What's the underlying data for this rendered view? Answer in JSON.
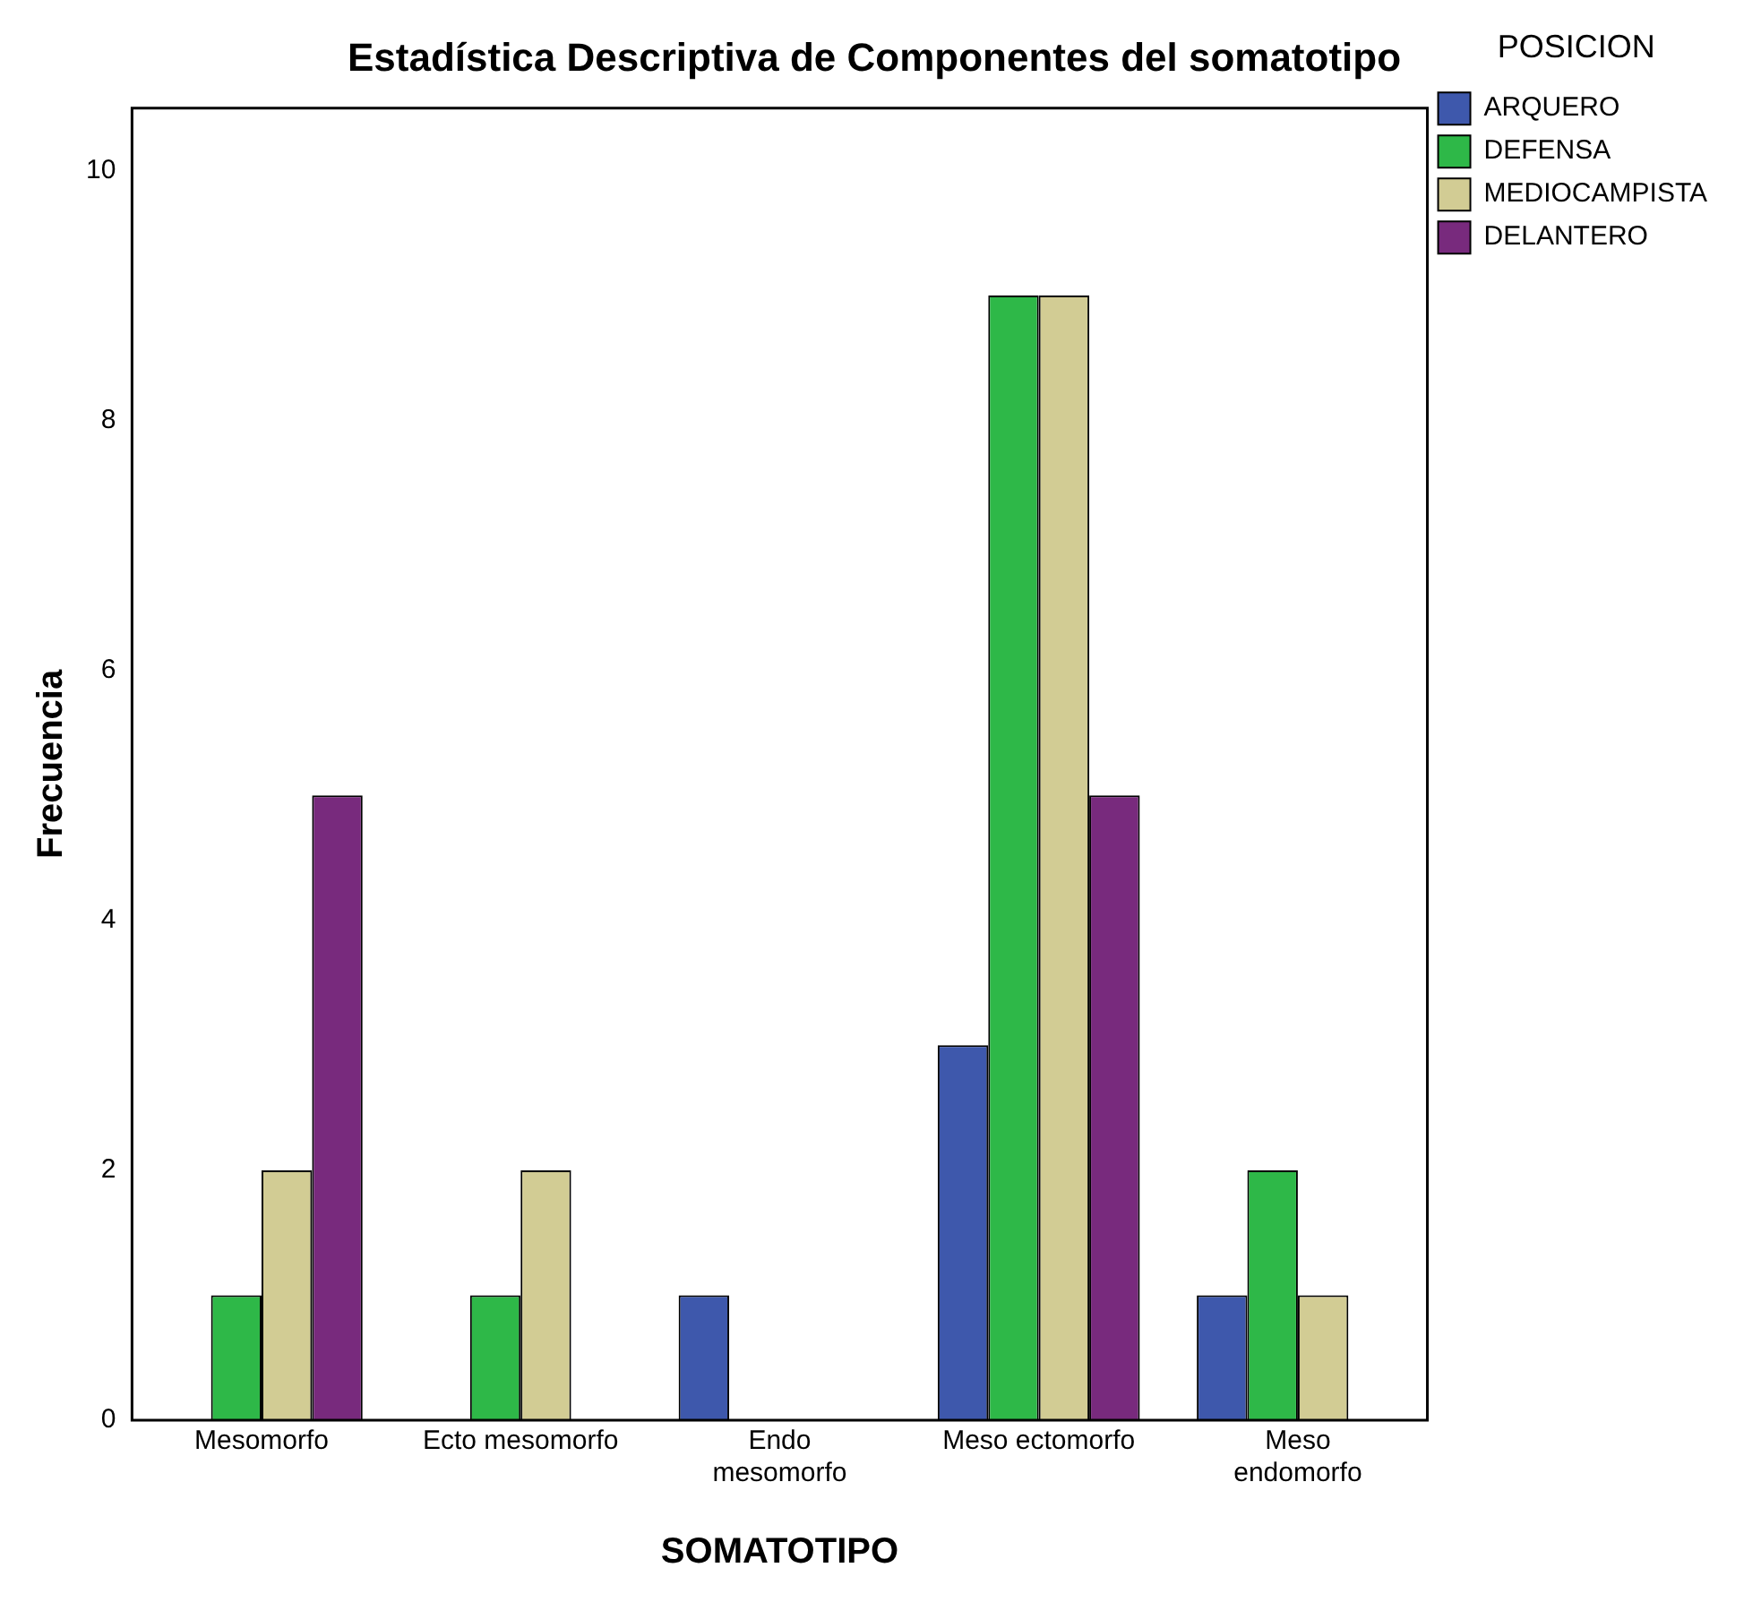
{
  "chart_data": {
    "type": "bar",
    "title": "Estadística Descriptiva de Componentes del somatotipo",
    "xlabel": "SOMATOTIPO",
    "ylabel": "Frecuencia",
    "legend_title": "POSICION",
    "legend": "top right",
    "grid": false,
    "categories": [
      "Mesomorfo",
      "Ecto mesomorfo",
      "Endo\nmesomorfo",
      "Meso ectomorfo",
      "Meso\nendomorfo"
    ],
    "ylim": [
      0,
      10.5
    ],
    "yticks": [
      0,
      2,
      4,
      6,
      8,
      10
    ],
    "series": [
      {
        "name": "ARQUERO",
        "color": "#3e58ac",
        "values": [
          0,
          0,
          1,
          3,
          1
        ]
      },
      {
        "name": "DEFENSA",
        "color": "#2eb848",
        "values": [
          1,
          1,
          0,
          9,
          2
        ]
      },
      {
        "name": "MEDIOCAMPISTA",
        "color": "#d2cc94",
        "values": [
          2,
          2,
          0,
          9,
          1
        ]
      },
      {
        "name": "DELANTERO",
        "color": "#782a7d",
        "values": [
          5,
          0,
          0,
          5,
          0
        ]
      }
    ]
  }
}
